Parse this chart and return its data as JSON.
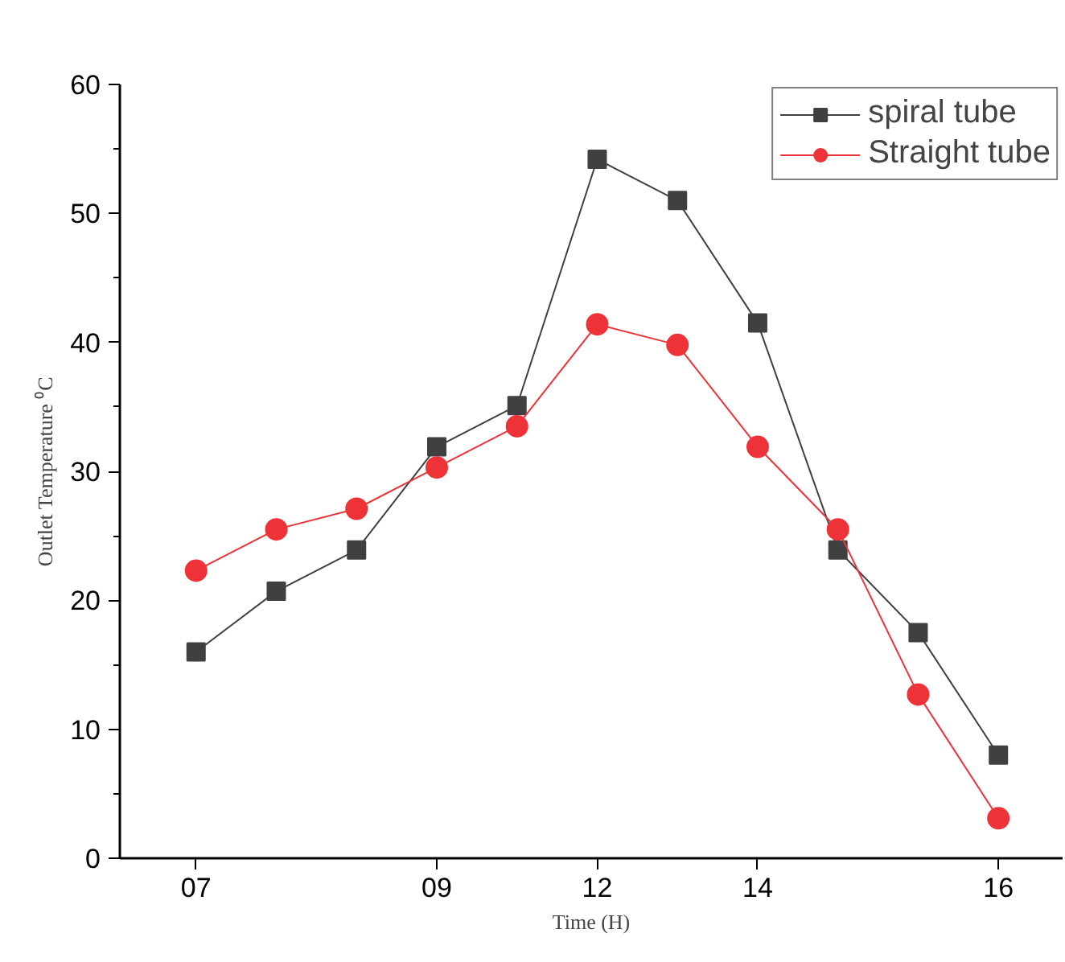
{
  "chart_data": {
    "type": "line",
    "xlabel": "Time (H)",
    "ylabel": "Outlet Temperature ⁰C",
    "categories": [
      "07",
      null,
      null,
      "09",
      null,
      "12",
      null,
      "14",
      null,
      null,
      "16"
    ],
    "series": [
      {
        "name": "spiral tube",
        "color": "#404040",
        "marker": "square",
        "values": [
          16,
          20.7,
          23.9,
          31.9,
          35.1,
          54.2,
          51,
          41.5,
          23.9,
          17.5,
          8
        ]
      },
      {
        "name": "Straight tube",
        "color": "#ee3338",
        "marker": "circle",
        "values": [
          22.3,
          25.5,
          27.1,
          30.3,
          33.5,
          41.4,
          39.8,
          31.9,
          25.5,
          12.7,
          3.1
        ]
      }
    ],
    "ylim": [
      0,
      60
    ],
    "yticks": [
      0,
      10,
      20,
      30,
      40,
      50,
      60
    ],
    "grid": false,
    "legend": "top right",
    "line_style": "solid"
  }
}
